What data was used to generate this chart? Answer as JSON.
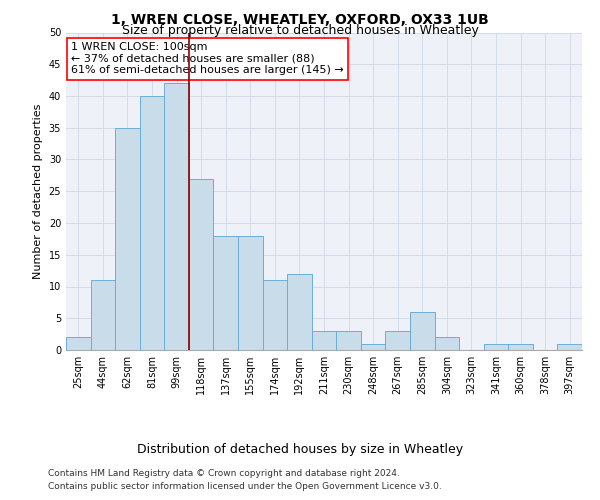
{
  "title": "1, WREN CLOSE, WHEATLEY, OXFORD, OX33 1UB",
  "subtitle": "Size of property relative to detached houses in Wheatley",
  "xlabel": "Distribution of detached houses by size in Wheatley",
  "ylabel": "Number of detached properties",
  "categories": [
    "25sqm",
    "44sqm",
    "62sqm",
    "81sqm",
    "99sqm",
    "118sqm",
    "137sqm",
    "155sqm",
    "174sqm",
    "192sqm",
    "211sqm",
    "230sqm",
    "248sqm",
    "267sqm",
    "285sqm",
    "304sqm",
    "323sqm",
    "341sqm",
    "360sqm",
    "378sqm",
    "397sqm"
  ],
  "values": [
    2,
    11,
    35,
    40,
    42,
    27,
    18,
    18,
    11,
    12,
    3,
    3,
    1,
    3,
    6,
    2,
    0,
    1,
    1,
    0,
    1
  ],
  "bar_color": "#c9dcea",
  "bar_edge_color": "#6aaed6",
  "highlight_line_index": 4,
  "highlight_line_color": "#8b0000",
  "annotation_line1": "1 WREN CLOSE: 100sqm",
  "annotation_line2": "← 37% of detached houses are smaller (88)",
  "annotation_line3": "61% of semi-detached houses are larger (145) →",
  "annotation_box_facecolor": "white",
  "annotation_box_edgecolor": "red",
  "ylim": [
    0,
    50
  ],
  "yticks": [
    0,
    5,
    10,
    15,
    20,
    25,
    30,
    35,
    40,
    45,
    50
  ],
  "grid_color": "#d0d8e4",
  "background_color": "#eef2f8",
  "footer_line1": "Contains HM Land Registry data © Crown copyright and database right 2024.",
  "footer_line2": "Contains public sector information licensed under the Open Government Licence v3.0.",
  "title_fontsize": 10,
  "subtitle_fontsize": 9,
  "xlabel_fontsize": 9,
  "ylabel_fontsize": 8,
  "tick_fontsize": 7,
  "annotation_fontsize": 8,
  "footer_fontsize": 6.5
}
